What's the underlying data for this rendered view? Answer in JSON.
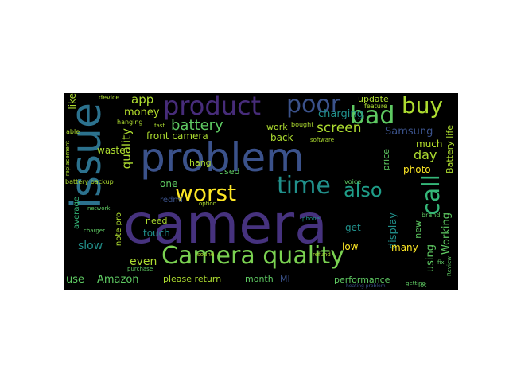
{
  "colors": {
    "background": "#000000",
    "page": "#ffffff",
    "purple": "#46327e",
    "indigo": "#3b528b",
    "teal": "#21918c",
    "sea": "#28ae80",
    "green": "#5ec962",
    "lime": "#addc30",
    "yellow": "#fde725",
    "violet": "#440154"
  },
  "words": [
    "camera",
    "problem",
    "issue",
    "product",
    "poor",
    "bad",
    "buy",
    "worst",
    "time",
    "also",
    "call",
    "Camera quality",
    "battery",
    "screen",
    "quality",
    "app",
    "money",
    "front camera",
    "Samsung",
    "day",
    "charging",
    "update",
    "work",
    "back",
    "much",
    "waste",
    "photo",
    "display",
    "Working",
    "Battery life",
    "slow",
    "touch",
    "Amazon",
    "use",
    "even",
    "please return",
    "month",
    "MI",
    "performance",
    "many",
    "using",
    "low",
    "like",
    "one",
    "redmi",
    "note pro",
    "average",
    "battery backup",
    "price",
    "hang",
    "used",
    "need",
    "get",
    "new",
    "phone",
    "replacement",
    "device",
    "hanging",
    "fast",
    "option",
    "sound",
    "charger",
    "purchase",
    "refund",
    "voice",
    "brand",
    "software",
    "feature",
    "bought",
    "able",
    "lot",
    "getting",
    "heating problem",
    "fix",
    "Review",
    "network"
  ]
}
